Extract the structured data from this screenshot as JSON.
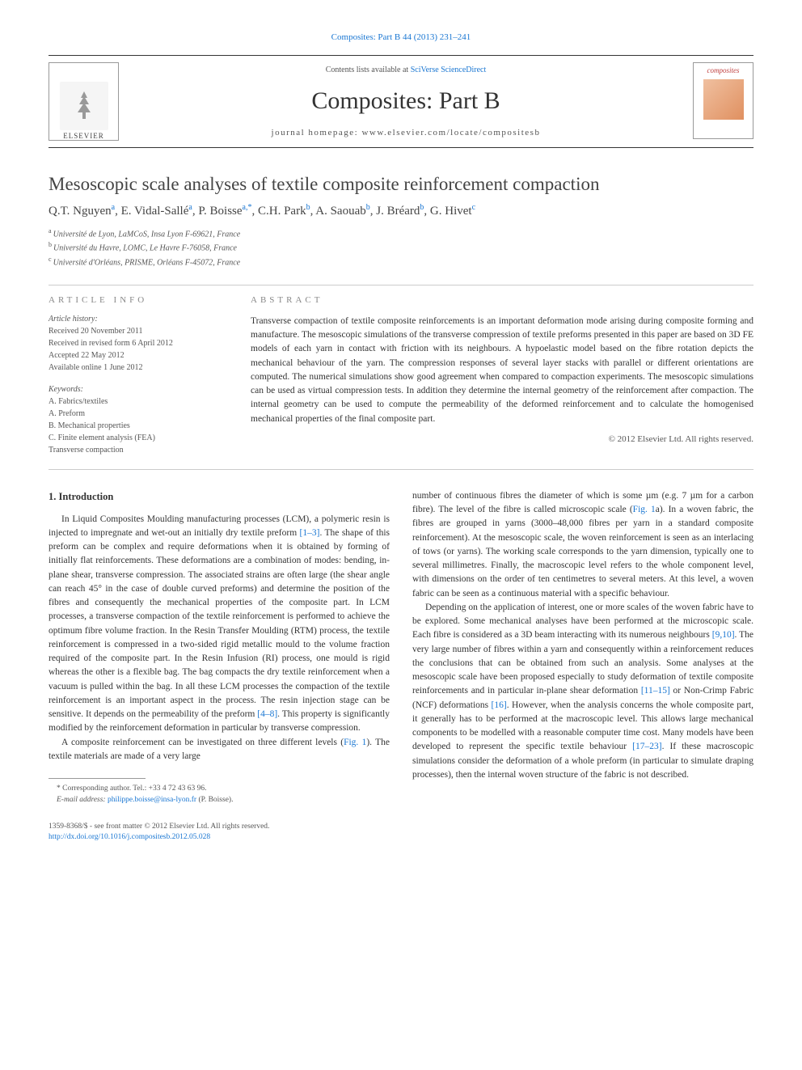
{
  "top_citation": "Composites: Part B 44 (2013) 231–241",
  "masthead": {
    "contents_prefix": "Contents lists available at ",
    "contents_link": "SciVerse ScienceDirect",
    "journal_title": "Composites: Part B",
    "homepage_prefix": "journal homepage: ",
    "homepage_url": "www.elsevier.com/locate/compositesb",
    "publisher": "ELSEVIER",
    "cover_title": "composites"
  },
  "article_title": "Mesoscopic scale analyses of textile composite reinforcement compaction",
  "authors_html": "Q.T. Nguyen<sup>a</sup>, E. Vidal-Sallé<sup>a</sup>, P. Boisse<sup>a,*</sup>, C.H. Park<sup>b</sup>, A. Saouab<sup>b</sup>, J. Bréard<sup>b</sup>, G. Hivet<sup>c</sup>",
  "affiliations": [
    {
      "sup": "a",
      "text": "Université de Lyon, LaMCoS, Insa Lyon F-69621, France"
    },
    {
      "sup": "b",
      "text": "Université du Havre, LOMC, Le Havre F-76058, France"
    },
    {
      "sup": "c",
      "text": "Université d'Orléans, PRISME, Orléans F-45072, France"
    }
  ],
  "article_info": {
    "heading": "ARTICLE INFO",
    "history_label": "Article history:",
    "history": [
      "Received 20 November 2011",
      "Received in revised form 6 April 2012",
      "Accepted 22 May 2012",
      "Available online 1 June 2012"
    ],
    "keywords_label": "Keywords:",
    "keywords": [
      "A. Fabrics/textiles",
      "A. Preform",
      "B. Mechanical properties",
      "C. Finite element analysis (FEA)",
      "Transverse compaction"
    ]
  },
  "abstract": {
    "heading": "ABSTRACT",
    "text": "Transverse compaction of textile composite reinforcements is an important deformation mode arising during composite forming and manufacture. The mesoscopic simulations of the transverse compression of textile preforms presented in this paper are based on 3D FE models of each yarn in contact with friction with its neighbours. A hypoelastic model based on the fibre rotation depicts the mechanical behaviour of the yarn. The compression responses of several layer stacks with parallel or different orientations are computed. The numerical simulations show good agreement when compared to compaction experiments. The mesoscopic simulations can be used as virtual compression tests. In addition they determine the internal geometry of the reinforcement after compaction. The internal geometry can be used to compute the permeability of the deformed reinforcement and to calculate the homogenised mechanical properties of the final composite part.",
    "copyright": "© 2012 Elsevier Ltd. All rights reserved."
  },
  "body": {
    "section1_heading": "1. Introduction",
    "left_p1": "In Liquid Composites Moulding manufacturing processes (LCM), a polymeric resin is injected to impregnate and wet-out an initially dry textile preform [1–3]. The shape of this preform can be complex and require deformations when it is obtained by forming of initially flat reinforcements. These deformations are a combination of modes: bending, in-plane shear, transverse compression. The associated strains are often large (the shear angle can reach 45° in the case of double curved preforms) and determine the position of the fibres and consequently the mechanical properties of the composite part. In LCM processes, a transverse compaction of the textile reinforcement is performed to achieve the optimum fibre volume fraction. In the Resin Transfer Moulding (RTM) process, the textile reinforcement is compressed in a two-sided rigid metallic mould to the volume fraction required of the composite part. In the Resin Infusion (RI) process, one mould is rigid whereas the other is a flexible bag. The bag compacts the dry textile reinforcement when a vacuum is pulled within the bag. In all these LCM processes the compaction of the textile reinforcement is an important aspect in the process. The resin injection stage can be sensitive. It depends on the permeability of the preform [4–8]. This property is significantly modified by the reinforcement deformation in particular by transverse compression.",
    "left_p2": "A composite reinforcement can be investigated on three different levels (Fig. 1). The textile materials are made of a very large",
    "right_p1": "number of continuous fibres the diameter of which is some µm (e.g. 7 µm for a carbon fibre). The level of the fibre is called microscopic scale (Fig. 1a). In a woven fabric, the fibres are grouped in yarns (3000–48,000 fibres per yarn in a standard composite reinforcement). At the mesoscopic scale, the woven reinforcement is seen as an interlacing of tows (or yarns). The working scale corresponds to the yarn dimension, typically one to several millimetres. Finally, the macroscopic level refers to the whole component level, with dimensions on the order of ten centimetres to several meters. At this level, a woven fabric can be seen as a continuous material with a specific behaviour.",
    "right_p2": "Depending on the application of interest, one or more scales of the woven fabric have to be explored. Some mechanical analyses have been performed at the microscopic scale. Each fibre is considered as a 3D beam interacting with its numerous neighbours [9,10]. The very large number of fibres within a yarn and consequently within a reinforcement reduces the conclusions that can be obtained from such an analysis. Some analyses at the mesoscopic scale have been proposed especially to study deformation of textile composite reinforcements and in particular in-plane shear deformation [11–15] or Non-Crimp Fabric (NCF) deformations [16]. However, when the analysis concerns the whole composite part, it generally has to be performed at the macroscopic level. This allows large mechanical components to be modelled with a reasonable computer time cost. Many models have been developed to represent the specific textile behaviour [17–23]. If these macroscopic simulations consider the deformation of a whole preform (in particular to simulate draping processes), then the internal woven structure of the fabric is not described."
  },
  "footnote": {
    "corr_label": "* Corresponding author. Tel.: +33 4 72 43 63 96.",
    "email_label": "E-mail address: ",
    "email": "philippe.boisse@insa-lyon.fr",
    "email_suffix": " (P. Boisse)."
  },
  "frontmatter": {
    "line1": "1359-8368/$ - see front matter © 2012 Elsevier Ltd. All rights reserved.",
    "doi": "http://dx.doi.org/10.1016/j.compositesb.2012.05.028"
  },
  "refs": {
    "r1_3": "[1–3]",
    "r4_8": "[4–8]",
    "fig1": "Fig. 1",
    "fig1a": "Fig. 1",
    "r9_10": "[9,10]",
    "r11_15": "[11–15]",
    "r16": "[16]",
    "r17_23": "[17–23]"
  },
  "colors": {
    "link": "#1976d2",
    "text": "#333333",
    "muted": "#555555",
    "heading_muted": "#888888"
  },
  "typography": {
    "body_fontsize_pt": 8.5,
    "title_fontsize_pt": 17,
    "journal_title_fontsize_pt": 22,
    "abstract_fontsize_pt": 8.5,
    "footnote_fontsize_pt": 7
  }
}
